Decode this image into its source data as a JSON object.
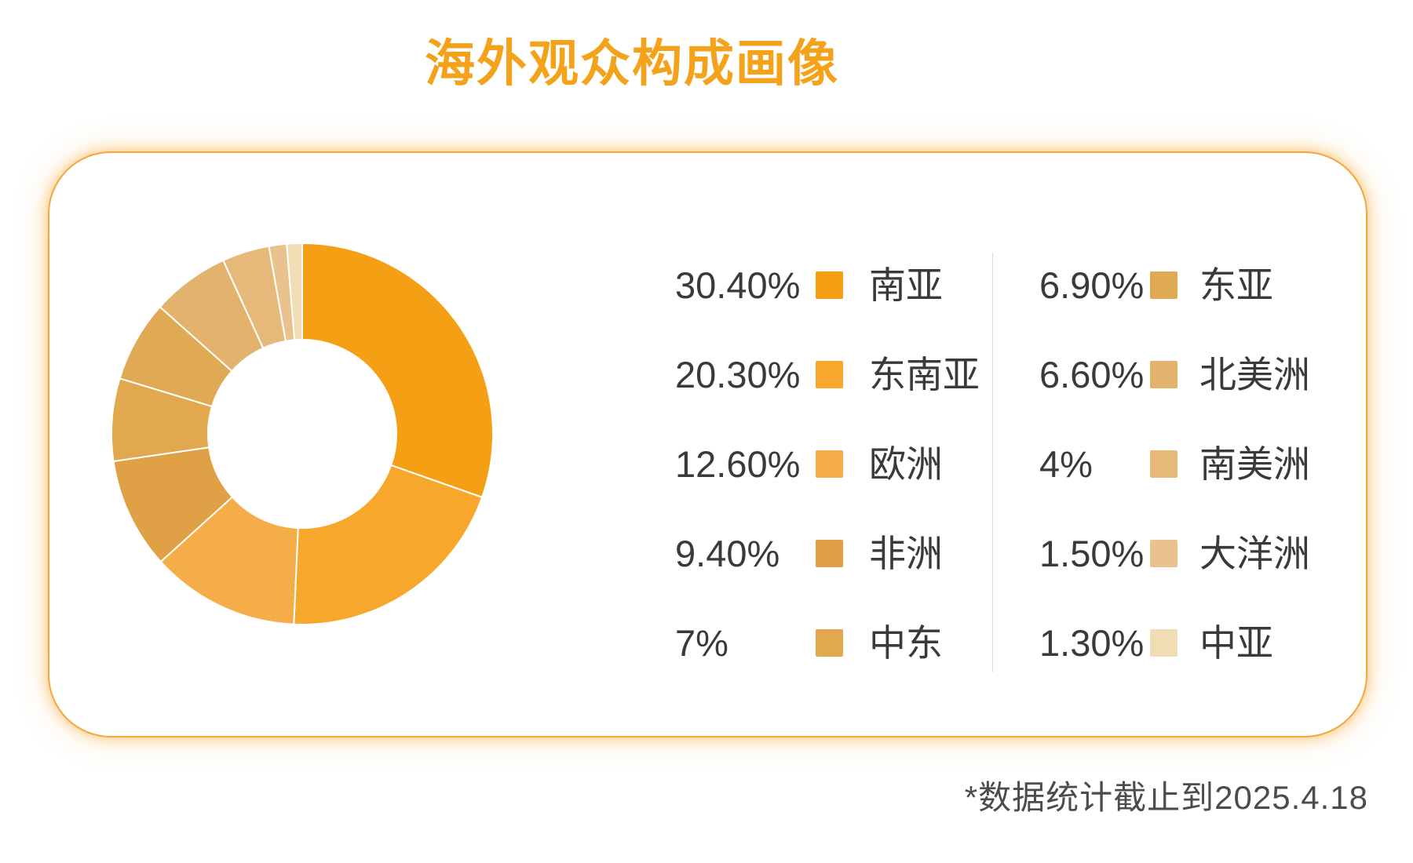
{
  "title": "海外观众构成画像",
  "footer": {
    "note": "*数据统计截止到2025.4.18"
  },
  "colors": {
    "accent": "#F5A21B",
    "card_border": "#F2A743",
    "divider": "#DCDCDC",
    "legend_text": "#3A3A3A",
    "footer_text": "#4C4C4C"
  },
  "chart_data": {
    "type": "pie",
    "title": "海外观众构成画像",
    "donut": true,
    "inner_radius_ratio": 0.494,
    "start_angle_deg": 0,
    "clockwise": true,
    "legend_position": "right",
    "categories": [
      "南亚",
      "东南亚",
      "欧洲",
      "非洲",
      "中东",
      "东亚",
      "北美洲",
      "南美洲",
      "大洋洲",
      "中亚"
    ],
    "values": [
      30.4,
      20.3,
      12.6,
      9.4,
      7,
      6.9,
      6.6,
      4,
      1.5,
      1.3
    ],
    "colors": [
      "#F5A014",
      "#F7A82C",
      "#F5AD49",
      "#DFA046",
      "#E1A850",
      "#E0AA55",
      "#E3B26D",
      "#E6B97B",
      "#EAC28E",
      "#F1DDB4"
    ]
  },
  "legend": {
    "columns": [
      {
        "items": [
          {
            "percent": "30.40%",
            "label": "南亚",
            "color": "#F5A014"
          },
          {
            "percent": "20.30%",
            "label": "东南亚",
            "color": "#F7A82C"
          },
          {
            "percent": "12.60%",
            "label": "欧洲",
            "color": "#F5AD49"
          },
          {
            "percent": "9.40%",
            "label": "非洲",
            "color": "#DFA046"
          },
          {
            "percent": "7%",
            "label": "中东",
            "color": "#E1A850"
          }
        ]
      },
      {
        "items": [
          {
            "percent": "6.90%",
            "label": "东亚",
            "color": "#E0AA55"
          },
          {
            "percent": "6.60%",
            "label": "北美洲",
            "color": "#E3B26D"
          },
          {
            "percent": "4%",
            "label": "南美洲",
            "color": "#E6B97B"
          },
          {
            "percent": "1.50%",
            "label": "大洋洲",
            "color": "#EAC28E"
          },
          {
            "percent": "1.30%",
            "label": "中亚",
            "color": "#F1DDB4"
          }
        ]
      }
    ]
  }
}
